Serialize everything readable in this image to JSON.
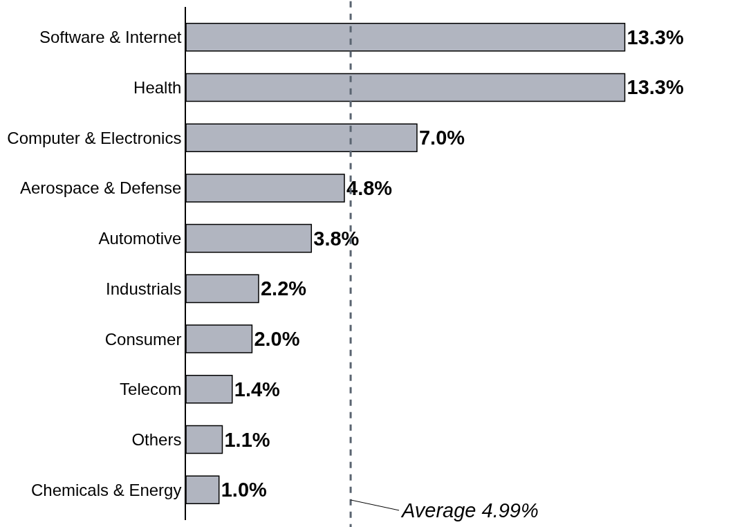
{
  "chart_data": {
    "type": "bar",
    "orientation": "horizontal",
    "categories": [
      "Software & Internet",
      "Health",
      "Computer & Electronics",
      "Aerospace & Defense",
      "Automotive",
      "Industrials",
      "Consumer",
      "Telecom",
      "Others",
      "Chemicals & Energy"
    ],
    "values": [
      13.3,
      13.3,
      7.0,
      4.8,
      3.8,
      2.2,
      2.0,
      1.4,
      1.1,
      1.0
    ],
    "value_labels": [
      "13.3%",
      "13.3%",
      "7.0%",
      "4.8%",
      "3.8%",
      "2.2%",
      "2.0%",
      "1.4%",
      "1.1%",
      "1.0%"
    ],
    "color": "#b1b5c0",
    "ref_lines": [
      {
        "axis": "x",
        "value": 4.99,
        "label": "Average 4.99%",
        "color": "#5a6470",
        "line_style": "dashed"
      }
    ],
    "tick_labels": "y"
  }
}
